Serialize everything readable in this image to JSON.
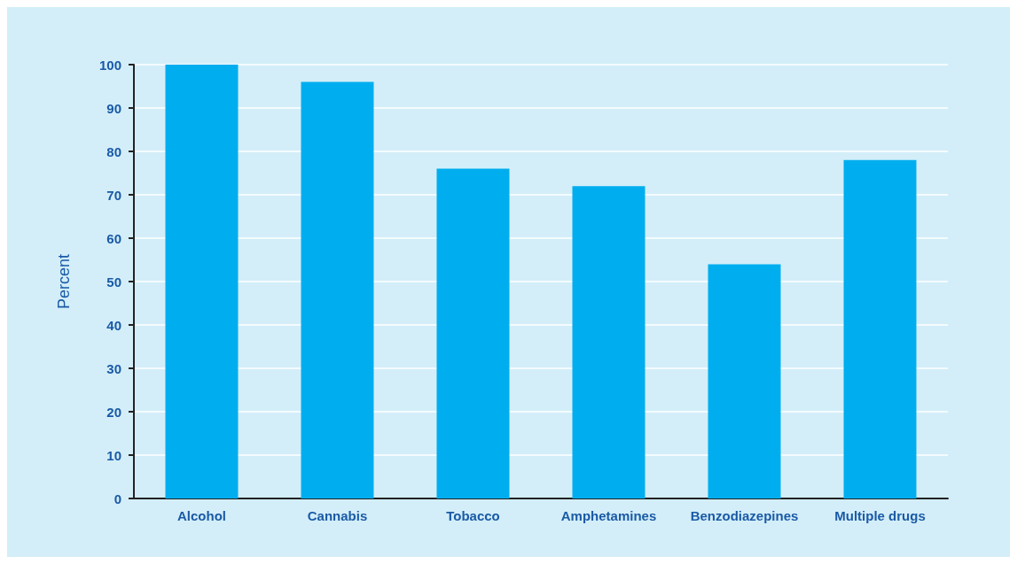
{
  "chart_data": {
    "type": "bar",
    "ylabel": "Percent",
    "categories": [
      "Alcohol",
      "Cannabis",
      "Tobacco",
      "Amphetamines",
      "Benzodiazepines",
      "Multiple drugs"
    ],
    "values": [
      100,
      96,
      76,
      72,
      54,
      78
    ],
    "color": "#00aeef",
    "ylim": [
      0,
      100
    ],
    "yticks": [
      0,
      10,
      20,
      30,
      40,
      50,
      60,
      70,
      80,
      90,
      100
    ],
    "grid": "y"
  }
}
